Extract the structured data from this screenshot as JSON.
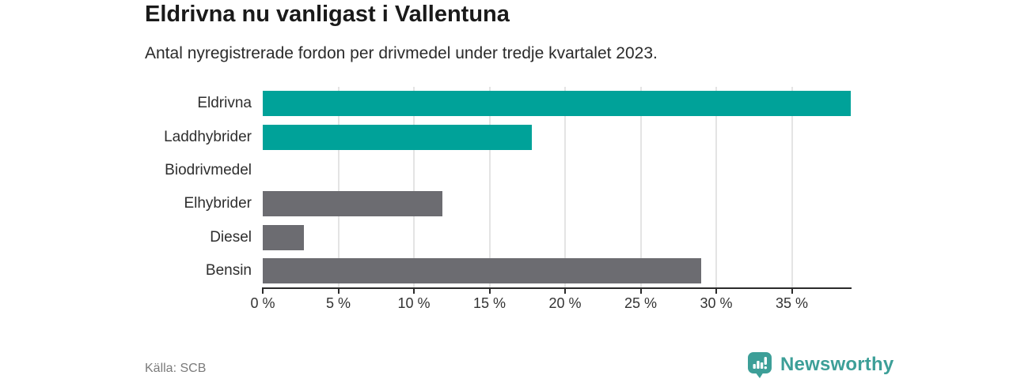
{
  "header": {
    "title": "Eldrivna nu vanligast i Vallentuna",
    "subtitle": "Antal nyregistrerade fordon per drivmedel under tredje kvartalet 2023."
  },
  "chart_data": {
    "type": "bar",
    "orientation": "horizontal",
    "title": "Eldrivna nu vanligast i Vallentuna",
    "subtitle": "Antal nyregistrerade fordon per drivmedel under tredje kvartalet 2023.",
    "categories": [
      "Eldrivna",
      "Laddhybrider",
      "Biodrivmedel",
      "Elhybrider",
      "Diesel",
      "Bensin"
    ],
    "values": [
      38.9,
      17.8,
      0,
      11.9,
      2.7,
      29.0
    ],
    "unit": "%",
    "bar_colors": [
      "#00a299",
      "#00a299",
      "#00a299",
      "#6c6c71",
      "#6c6c71",
      "#6c6c71"
    ],
    "xlabel": "",
    "ylabel": "",
    "xlim": [
      0,
      38.9
    ],
    "xticks": [
      0,
      5,
      10,
      15,
      20,
      25,
      30,
      35
    ],
    "xtick_labels": [
      "0 %",
      "5 %",
      "10 %",
      "15 %",
      "20 %",
      "25 %",
      "30 %",
      "35 %"
    ],
    "grid": "vertical",
    "legend": "none"
  },
  "footer": {
    "source": "Källa: SCB",
    "brand": "Newsworthy"
  },
  "colors": {
    "accent_teal": "#00a299",
    "bar_gray": "#6c6c71",
    "brand_teal": "#3d9f98",
    "gridline": "#e4e4e4",
    "axis": "#2b2b2b",
    "background": "#ffffff"
  }
}
